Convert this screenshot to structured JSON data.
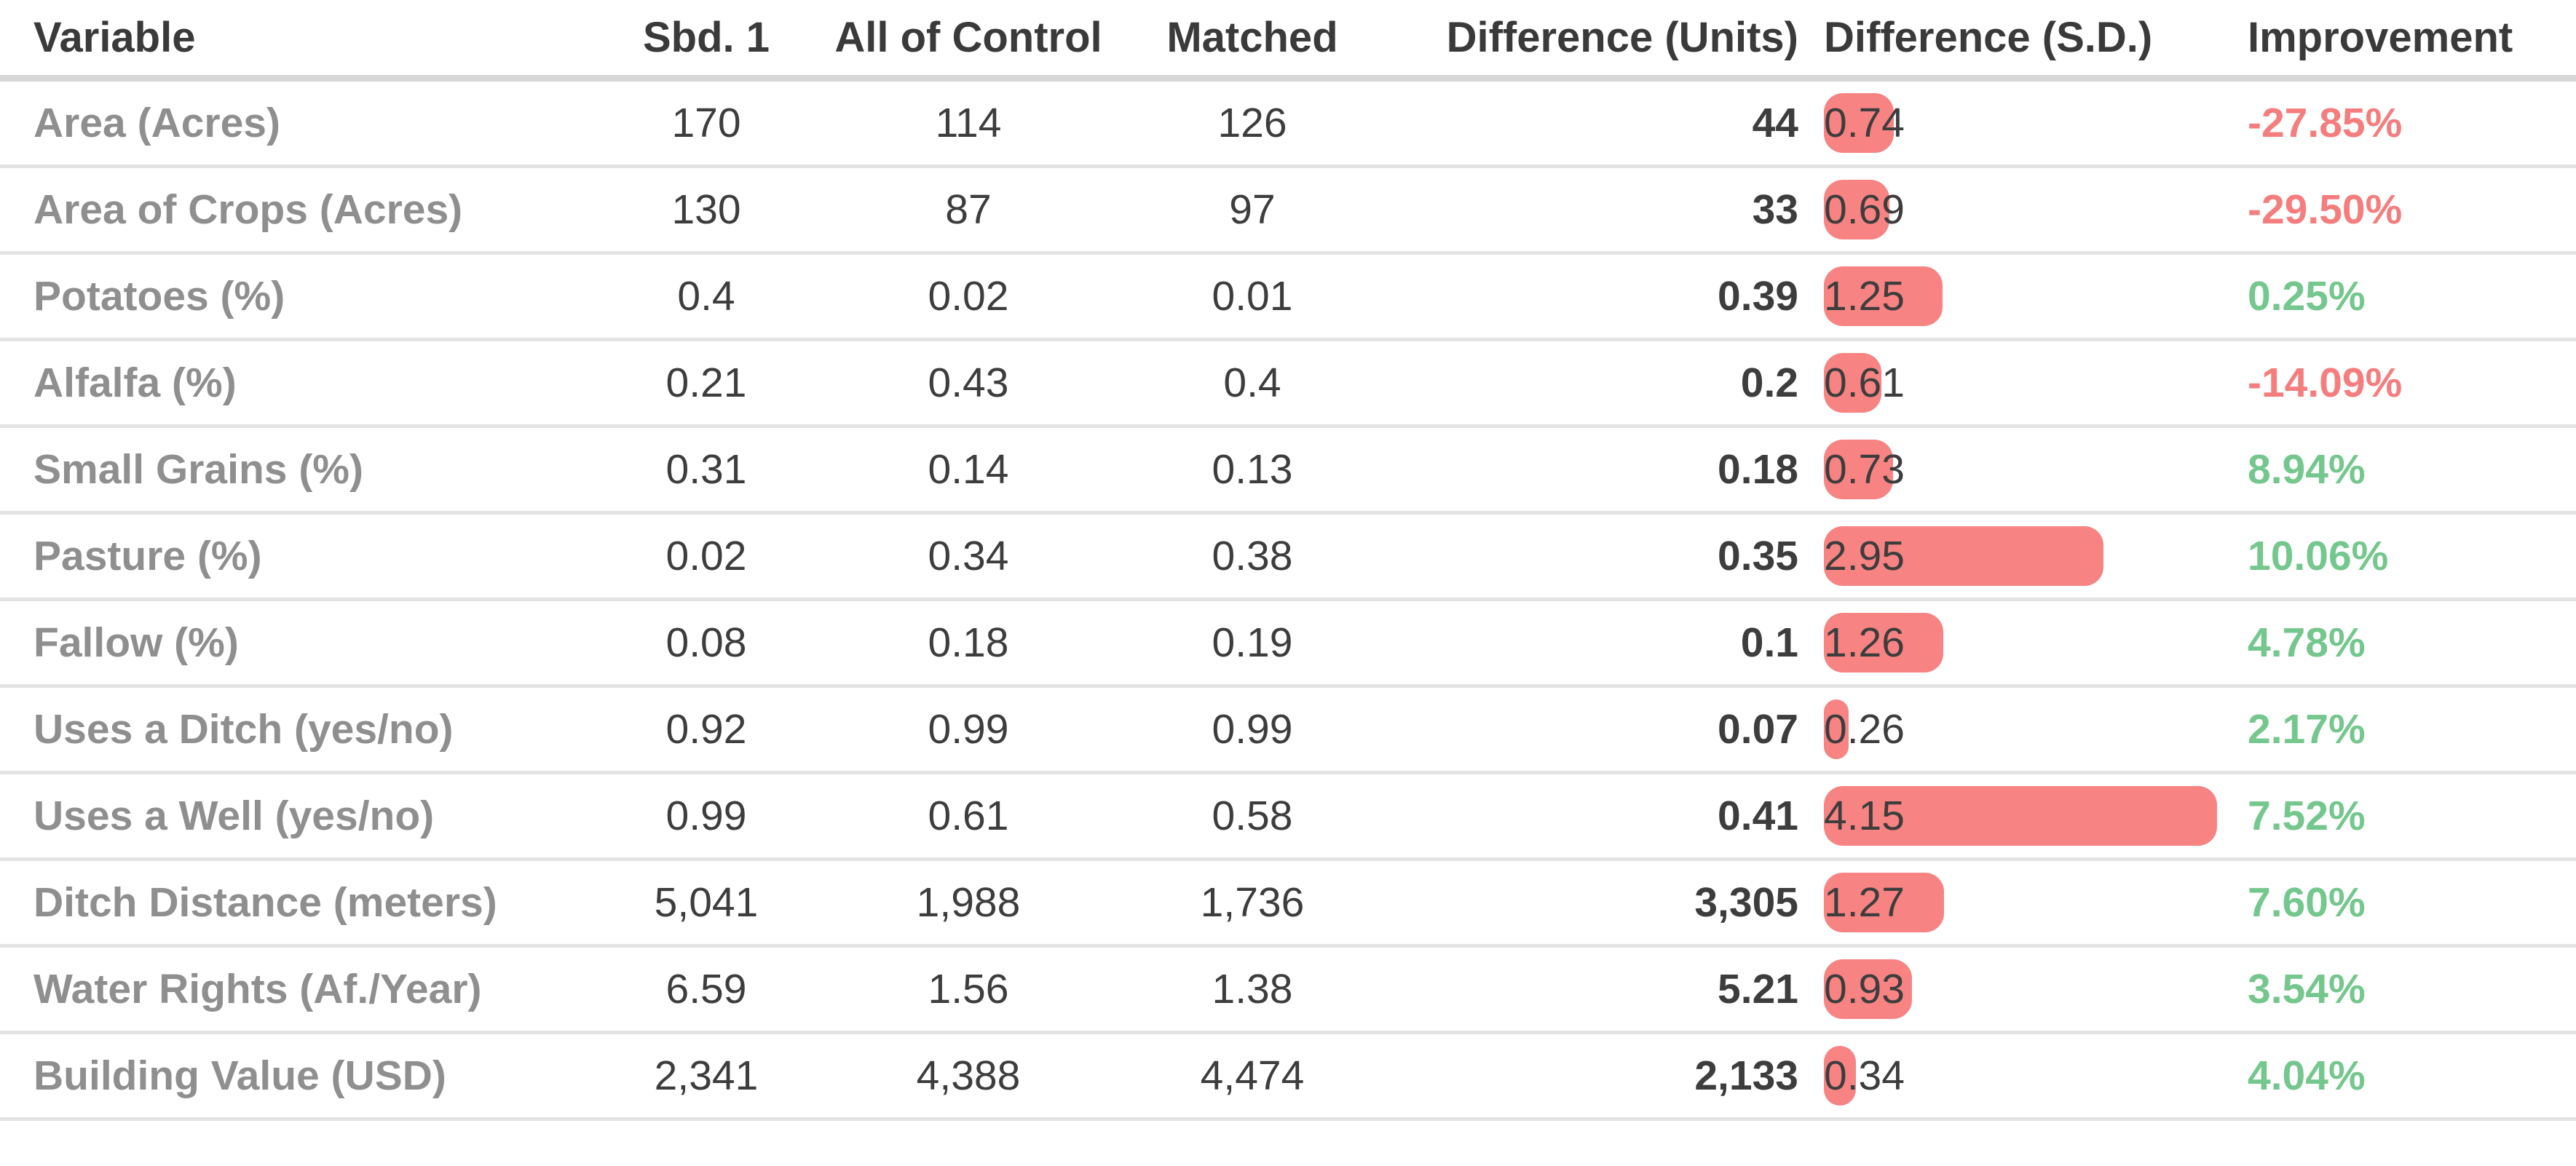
{
  "chart_data": {
    "type": "table",
    "columns": [
      {
        "key": "variable",
        "label": "Variable",
        "align": "left"
      },
      {
        "key": "sbd1",
        "label": "Sbd. 1",
        "align": "center"
      },
      {
        "key": "control",
        "label": "All of Control",
        "align": "center"
      },
      {
        "key": "matched",
        "label": "Matched",
        "align": "center"
      },
      {
        "key": "diff_units",
        "label": "Difference (Units)",
        "align": "right"
      },
      {
        "key": "diff_sd",
        "label": "Difference (S.D.)",
        "align": "left"
      },
      {
        "key": "improvement",
        "label": "Improvement",
        "align": "left"
      }
    ],
    "rows": [
      {
        "variable": "Area (Acres)",
        "sbd1": "170",
        "control": "114",
        "matched": "126",
        "diff_units": "44",
        "diff_sd": "0.74",
        "improvement": "-27.85%"
      },
      {
        "variable": "Area of Crops (Acres)",
        "sbd1": "130",
        "control": "87",
        "matched": "97",
        "diff_units": "33",
        "diff_sd": "0.69",
        "improvement": "-29.50%"
      },
      {
        "variable": "Potatoes (%)",
        "sbd1": "0.4",
        "control": "0.02",
        "matched": "0.01",
        "diff_units": "0.39",
        "diff_sd": "1.25",
        "improvement": "0.25%"
      },
      {
        "variable": "Alfalfa (%)",
        "sbd1": "0.21",
        "control": "0.43",
        "matched": "0.4",
        "diff_units": "0.2",
        "diff_sd": "0.61",
        "improvement": "-14.09%"
      },
      {
        "variable": "Small Grains (%)",
        "sbd1": "0.31",
        "control": "0.14",
        "matched": "0.13",
        "diff_units": "0.18",
        "diff_sd": "0.73",
        "improvement": "8.94%"
      },
      {
        "variable": "Pasture (%)",
        "sbd1": "0.02",
        "control": "0.34",
        "matched": "0.38",
        "diff_units": "0.35",
        "diff_sd": "2.95",
        "improvement": "10.06%"
      },
      {
        "variable": "Fallow (%)",
        "sbd1": "0.08",
        "control": "0.18",
        "matched": "0.19",
        "diff_units": "0.1",
        "diff_sd": "1.26",
        "improvement": "4.78%"
      },
      {
        "variable": "Uses a Ditch (yes/no)",
        "sbd1": "0.92",
        "control": "0.99",
        "matched": "0.99",
        "diff_units": "0.07",
        "diff_sd": "0.26",
        "improvement": "2.17%"
      },
      {
        "variable": "Uses a Well (yes/no)",
        "sbd1": "0.99",
        "control": "0.61",
        "matched": "0.58",
        "diff_units": "0.41",
        "diff_sd": "4.15",
        "improvement": "7.52%"
      },
      {
        "variable": "Ditch Distance (meters)",
        "sbd1": "5,041",
        "control": "1,988",
        "matched": "1,736",
        "diff_units": "3,305",
        "diff_sd": "1.27",
        "improvement": "7.60%"
      },
      {
        "variable": "Water Rights (Af./Year)",
        "sbd1": "6.59",
        "control": "1.56",
        "matched": "1.38",
        "diff_units": "5.21",
        "diff_sd": "0.93",
        "improvement": "3.54%"
      },
      {
        "variable": "Building Value (USD)",
        "sbd1": "2,341",
        "control": "4,388",
        "matched": "4,474",
        "diff_units": "2,133",
        "diff_sd": "0.34",
        "improvement": "4.04%"
      }
    ]
  },
  "colors": {
    "bar": "#f78383",
    "improvement_negative": "#f67d7d",
    "improvement_positive": "#74c78d",
    "variable_label": "#8f8f8f",
    "value_text": "#3d3d3d",
    "header_text": "#3a3a3a",
    "row_divider": "#e3e3e3",
    "header_divider": "#d7d7d7"
  }
}
